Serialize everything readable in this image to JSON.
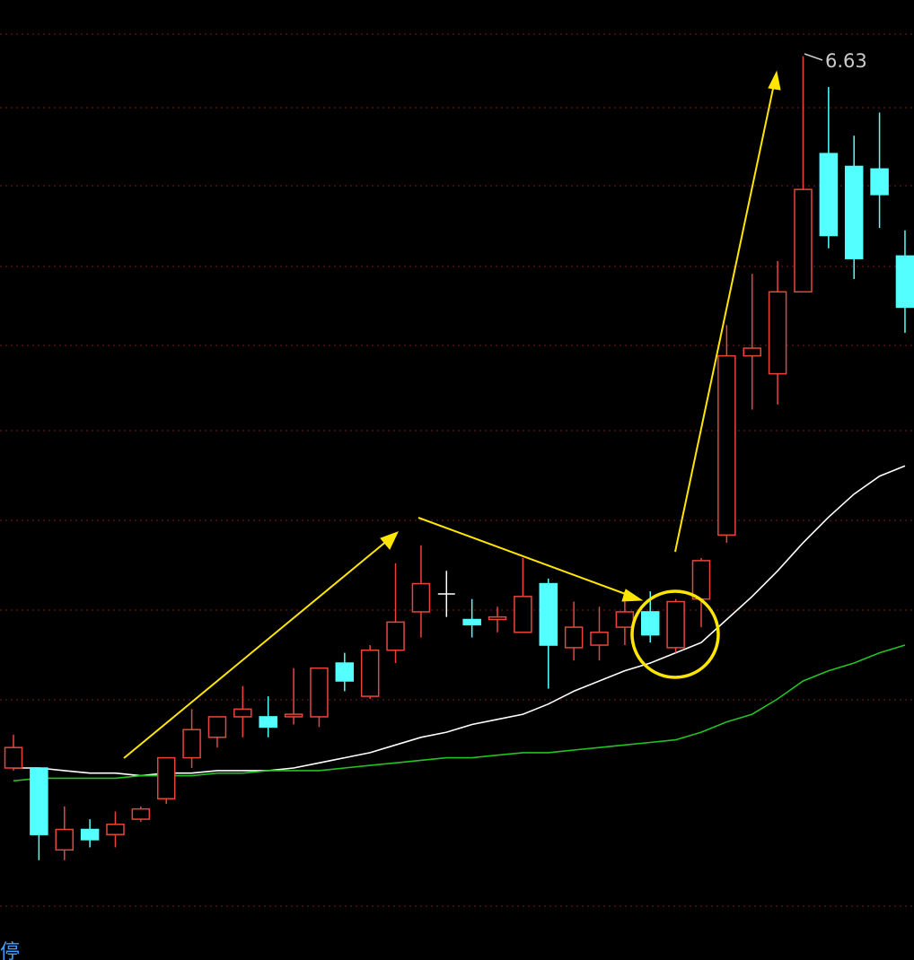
{
  "chart_data": {
    "type": "candlestick",
    "open": [
      3.85,
      3.85,
      3.53,
      3.61,
      3.59,
      3.65,
      3.73,
      3.89,
      3.97,
      4.05,
      4.05,
      4.05,
      4.05,
      4.26,
      4.13,
      4.31,
      4.46,
      4.53,
      4.43,
      4.43,
      4.38,
      4.57,
      4.32,
      4.33,
      4.4,
      4.46,
      4.32,
      4.51,
      4.76,
      5.46,
      5.39,
      5.71,
      6.25,
      6.2,
      6.19,
      5.85
    ],
    "high": [
      3.98,
      3.85,
      3.7,
      3.65,
      3.68,
      3.7,
      3.89,
      4.08,
      4.05,
      4.17,
      4.13,
      4.24,
      4.24,
      4.3,
      4.33,
      4.65,
      4.72,
      4.62,
      4.51,
      4.48,
      4.67,
      4.59,
      4.5,
      4.48,
      4.54,
      4.54,
      4.51,
      4.67,
      5.58,
      5.78,
      5.83,
      6.63,
      6.51,
      6.32,
      6.41,
      5.95
    ],
    "low": [
      3.84,
      3.49,
      3.49,
      3.54,
      3.54,
      3.64,
      3.71,
      3.85,
      3.93,
      3.97,
      3.97,
      4.02,
      4.01,
      4.15,
      4.12,
      4.26,
      4.36,
      4.44,
      4.36,
      4.38,
      4.38,
      4.16,
      4.27,
      4.27,
      4.33,
      4.34,
      4.3,
      4.4,
      4.73,
      5.25,
      5.27,
      5.71,
      5.88,
      5.76,
      5.96,
      5.55
    ],
    "close": [
      3.93,
      3.59,
      3.61,
      3.57,
      3.63,
      3.69,
      3.89,
      4.0,
      4.05,
      4.08,
      4.01,
      4.06,
      4.24,
      4.19,
      4.31,
      4.42,
      4.57,
      4.53,
      4.41,
      4.44,
      4.52,
      4.33,
      4.4,
      4.38,
      4.46,
      4.37,
      4.5,
      4.66,
      5.46,
      5.49,
      5.71,
      6.11,
      5.93,
      5.84,
      6.09,
      5.65
    ],
    "up_color": "#e8463a",
    "down_color": "#54ffff",
    "flat_color": "#ffffff",
    "lines": [
      {
        "color": "#ffffff",
        "values": [
          3.85,
          3.85,
          3.84,
          3.83,
          3.83,
          3.82,
          3.83,
          3.83,
          3.84,
          3.84,
          3.84,
          3.85,
          3.87,
          3.89,
          3.91,
          3.94,
          3.97,
          3.99,
          4.02,
          4.04,
          4.06,
          4.1,
          4.15,
          4.19,
          4.23,
          4.26,
          4.3,
          4.34,
          4.43,
          4.52,
          4.62,
          4.73,
          4.83,
          4.92,
          4.99,
          5.03
        ]
      },
      {
        "color": "#22c322",
        "values": [
          3.8,
          3.81,
          3.81,
          3.81,
          3.81,
          3.82,
          3.82,
          3.82,
          3.83,
          3.83,
          3.84,
          3.84,
          3.84,
          3.85,
          3.86,
          3.87,
          3.88,
          3.89,
          3.89,
          3.9,
          3.91,
          3.91,
          3.92,
          3.93,
          3.94,
          3.95,
          3.96,
          3.99,
          4.03,
          4.06,
          4.12,
          4.19,
          4.23,
          4.26,
          4.3,
          4.33
        ]
      }
    ],
    "ylim": [
      3.1,
      6.85
    ],
    "annotation": "6.63",
    "corner_label": "停"
  }
}
